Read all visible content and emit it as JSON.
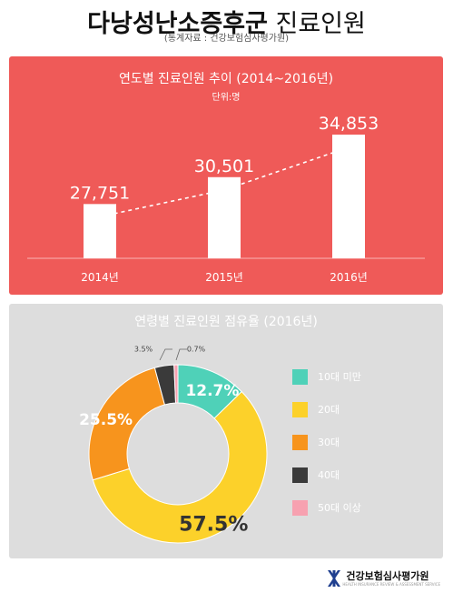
{
  "header": {
    "title_bold": "다낭성난소증후군",
    "title_light": " 진료인원",
    "source": "(통계자료 : 건강보험심사평가원)"
  },
  "chart_data": [
    {
      "type": "bar",
      "title": "연도별 진료인원 추이 (2014~2016년)",
      "unit": "단위:명",
      "categories": [
        "2014년",
        "2015년",
        "2016년"
      ],
      "values": [
        27751,
        30501,
        34853
      ],
      "value_labels": [
        "27,751",
        "30,501",
        "34,853"
      ],
      "trend_line": "dashed",
      "colors": {
        "background": "#ef5a58",
        "bar": "#ffffff",
        "text": "#ffffff"
      }
    },
    {
      "type": "pie",
      "variant": "donut",
      "title": "연령별 진료인원 점유율 (2016년)",
      "categories": [
        "10대 미만",
        "20대",
        "30대",
        "40대",
        "50대 이상"
      ],
      "values": [
        12.7,
        57.5,
        25.5,
        3.5,
        0.7
      ],
      "value_labels": [
        "12.7%",
        "57.5%",
        "25.5%",
        "3.5%",
        "0.7%"
      ],
      "colors": [
        "#4fd1b8",
        "#fcd12a",
        "#f7941d",
        "#3a3a3a",
        "#f7a1b0"
      ],
      "legend": "right"
    }
  ],
  "footer": {
    "logo_name": "건강보험심사평가원",
    "logo_sub": "HEALTH INSURANCE REVIEW & ASSESSMENT SERVICE"
  }
}
